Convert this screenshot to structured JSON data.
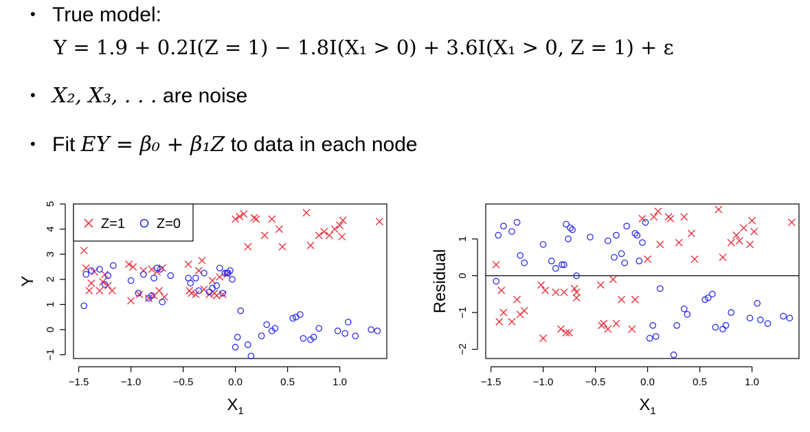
{
  "bullets": {
    "b1_label": "True model:",
    "eq_text": "Y = 1.9 + 0.2I(Z = 1) − 1.8I(X₁ > 0) + 3.6I(X₁ > 0, Z = 1) + ε",
    "b2_math": "X₂, X₃, . . .",
    "b2_text": " are noise",
    "b3_pre": "Fit ",
    "b3_math": "EY = β₀ + β₁Z",
    "b3_post": " to data in each node",
    "bullet_symbol": "•"
  },
  "colors": {
    "z1": "#e8333f",
    "z0": "#2a2ee8"
  },
  "chart_data": [
    {
      "type": "scatter",
      "xlabel": "X1",
      "ylabel": "Y",
      "xlim": [
        -1.55,
        1.45
      ],
      "ylim": [
        -1.15,
        5.0
      ],
      "xticks": [
        -1.5,
        -1.0,
        -0.5,
        0.0,
        0.5,
        1.0
      ],
      "xtick_labels": [
        "−1.5",
        "−1.0",
        "−0.5",
        "0.0",
        "0.5",
        "1.0"
      ],
      "yticks": [
        -1,
        0,
        1,
        2,
        3,
        4,
        5
      ],
      "ytick_labels": [
        "−1",
        "0",
        "1",
        "2",
        "3",
        "4",
        "5"
      ],
      "legend": {
        "position": "top-left",
        "entries": [
          "Z=1",
          "Z=0"
        ]
      },
      "series": [
        {
          "name": "Z=1",
          "marker": "x",
          "x": [
            -1.45,
            -1.43,
            -1.4,
            -1.38,
            -1.35,
            -1.3,
            -1.27,
            -1.25,
            -1.22,
            -1.18,
            -1.02,
            -1.0,
            -0.98,
            -0.92,
            -0.88,
            -0.83,
            -0.8,
            -0.78,
            -0.75,
            -0.73,
            -0.7,
            -0.68,
            -0.45,
            -0.44,
            -0.42,
            -0.38,
            -0.35,
            -0.32,
            -0.3,
            -0.25,
            -0.22,
            -0.2,
            -0.18,
            -0.15,
            -0.12,
            -0.08,
            0.0,
            0.04,
            0.08,
            0.12,
            0.18,
            0.2,
            0.28,
            0.35,
            0.42,
            0.45,
            0.68,
            0.72,
            0.8,
            0.85,
            0.9,
            0.95,
            1.0,
            1.02,
            1.03,
            1.38
          ],
          "y": [
            3.15,
            2.45,
            1.55,
            1.85,
            2.3,
            1.55,
            1.9,
            2.2,
            1.75,
            1.55,
            2.6,
            1.15,
            2.5,
            1.4,
            2.35,
            1.25,
            2.4,
            1.35,
            2.3,
            1.55,
            2.45,
            1.3,
            2.6,
            1.55,
            1.45,
            1.4,
            2.35,
            2.75,
            1.6,
            1.4,
            1.95,
            1.45,
            1.35,
            2.1,
            1.4,
            2.2,
            4.4,
            4.5,
            4.6,
            3.3,
            4.45,
            4.4,
            3.75,
            4.4,
            4.0,
            3.3,
            4.65,
            3.35,
            3.75,
            3.9,
            3.75,
            4.0,
            4.15,
            3.7,
            4.35,
            4.3
          ]
        },
        {
          "name": "Z=0",
          "marker": "o",
          "x": [
            -1.45,
            -1.43,
            -1.38,
            -1.3,
            -1.25,
            -1.22,
            -1.17,
            -1.0,
            -0.93,
            -0.88,
            -0.83,
            -0.8,
            -0.78,
            -0.75,
            -0.72,
            -0.7,
            -0.62,
            -0.45,
            -0.43,
            -0.38,
            -0.35,
            -0.3,
            -0.25,
            -0.22,
            -0.18,
            -0.15,
            -0.12,
            -0.1,
            -0.08,
            -0.07,
            -0.05,
            -0.03,
            0.0,
            0.02,
            0.05,
            0.12,
            0.15,
            0.25,
            0.3,
            0.35,
            0.38,
            0.55,
            0.58,
            0.62,
            0.65,
            0.72,
            0.75,
            0.8,
            0.98,
            1.05,
            1.08,
            1.15,
            1.3,
            1.36
          ],
          "y": [
            0.95,
            2.2,
            2.35,
            2.4,
            1.8,
            2.15,
            2.55,
            1.95,
            1.45,
            2.2,
            1.25,
            1.35,
            2.05,
            2.45,
            2.4,
            1.1,
            2.15,
            2.05,
            1.85,
            2.05,
            1.55,
            2.25,
            1.5,
            1.65,
            1.75,
            2.45,
            1.45,
            2.25,
            2.25,
            2.25,
            2.35,
            2.0,
            -0.7,
            -0.3,
            0.75,
            -0.6,
            -1.05,
            -0.25,
            0.2,
            -0.05,
            0.05,
            0.45,
            0.5,
            0.6,
            -0.35,
            -0.4,
            -0.3,
            0.05,
            -0.05,
            -0.15,
            0.3,
            -0.25,
            0.0,
            -0.05
          ]
        }
      ]
    },
    {
      "type": "scatter",
      "xlabel": "X1",
      "ylabel": "Residual",
      "xlim": [
        -1.55,
        1.45
      ],
      "ylim": [
        -2.25,
        1.95
      ],
      "xticks": [
        -1.5,
        -1.0,
        -0.5,
        0.0,
        0.5,
        1.0
      ],
      "xtick_labels": [
        "−1.5",
        "−1.0",
        "−0.5",
        "0.0",
        "0.5",
        "1.0"
      ],
      "yticks": [
        -2,
        -1,
        0,
        1
      ],
      "ytick_labels": [
        "−2",
        "−1",
        "0",
        "1"
      ],
      "hline": 0,
      "series": [
        {
          "name": "Z=1",
          "marker": "x",
          "x": [
            -1.45,
            -1.42,
            -1.4,
            -1.38,
            -1.3,
            -1.25,
            -1.22,
            -1.18,
            -1.02,
            -1.0,
            -0.98,
            -0.88,
            -0.83,
            -0.8,
            -0.78,
            -0.75,
            -0.7,
            -0.68,
            -0.68,
            -0.45,
            -0.44,
            -0.42,
            -0.38,
            -0.33,
            -0.3,
            -0.25,
            -0.15,
            -0.12,
            -0.05,
            0.0,
            0.06,
            0.1,
            0.12,
            0.2,
            0.22,
            0.3,
            0.35,
            0.42,
            0.45,
            0.68,
            0.72,
            0.8,
            0.85,
            0.88,
            0.92,
            0.98,
            1.0,
            1.02,
            1.38
          ],
          "y": [
            0.3,
            -1.25,
            -0.4,
            -1.0,
            -1.25,
            -0.65,
            -1.05,
            -0.95,
            -0.25,
            -1.7,
            -0.4,
            -0.45,
            -1.45,
            -0.45,
            -1.55,
            -1.55,
            -0.35,
            -0.45,
            -0.6,
            -0.25,
            -1.35,
            -1.3,
            -1.45,
            -0.1,
            -1.3,
            -0.65,
            -1.45,
            -0.65,
            1.55,
            0.45,
            1.6,
            1.75,
            0.85,
            1.6,
            1.55,
            0.9,
            1.6,
            1.15,
            0.45,
            1.8,
            0.5,
            0.9,
            1.1,
            0.95,
            1.3,
            0.85,
            1.5,
            1.2,
            1.45
          ]
        },
        {
          "name": "Z=0",
          "marker": "o",
          "x": [
            -1.45,
            -1.43,
            -1.38,
            -1.3,
            -1.25,
            -1.22,
            -1.18,
            -1.0,
            -0.92,
            -0.88,
            -0.82,
            -0.8,
            -0.78,
            -0.76,
            -0.74,
            -0.72,
            -0.68,
            -0.55,
            -0.38,
            -0.32,
            -0.3,
            -0.25,
            -0.22,
            -0.2,
            -0.12,
            -0.1,
            -0.08,
            -0.05,
            -0.02,
            0.02,
            0.05,
            0.08,
            0.12,
            0.25,
            0.28,
            0.35,
            0.38,
            0.55,
            0.58,
            0.62,
            0.65,
            0.72,
            0.75,
            0.8,
            0.98,
            1.05,
            1.08,
            1.15,
            1.3,
            1.36
          ],
          "y": [
            -0.15,
            1.1,
            1.35,
            1.2,
            1.45,
            0.55,
            0.35,
            0.85,
            0.4,
            0.2,
            0.3,
            0.3,
            1.4,
            1.0,
            1.3,
            1.25,
            0.0,
            1.05,
            0.95,
            0.5,
            1.1,
            0.6,
            0.35,
            1.35,
            1.15,
            1.1,
            0.4,
            0.9,
            1.45,
            -1.7,
            -1.35,
            -1.65,
            -0.35,
            -2.15,
            -1.35,
            -0.9,
            -1.05,
            -0.65,
            -0.6,
            -0.5,
            -1.4,
            -1.45,
            -1.35,
            -1.0,
            -1.15,
            -0.75,
            -1.2,
            -1.3,
            -1.1,
            -1.15
          ]
        }
      ]
    }
  ]
}
